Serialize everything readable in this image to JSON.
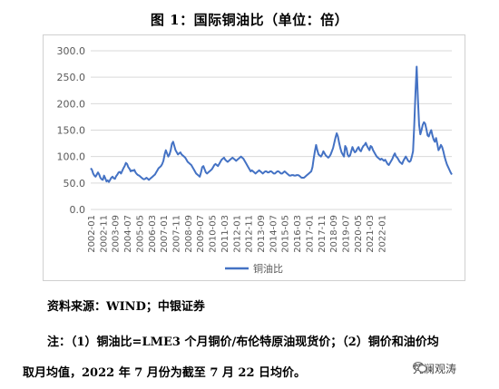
{
  "figure": {
    "title": "图 1：国际铜油比（单位：倍）",
    "source": "资料来源：WIND；中银证券",
    "note_line1": "注：（1）铜油比=LME3 个月铜价/布伦特原油现货价；（2）铜价和油价均",
    "note_line2": "取月均值，2022 年 7 月份为截至 7 月 22 日均价。",
    "watermark": "凭澜观涛"
  },
  "chart_data": {
    "type": "line",
    "title": "图 1：国际铜油比（单位：倍）",
    "xlabel": "",
    "ylabel": "",
    "ylim": [
      0,
      300
    ],
    "yticks": [
      "0.0",
      "50.0",
      "100.0",
      "150.0",
      "200.0",
      "250.0",
      "300.0"
    ],
    "xticks": [
      "2002-01",
      "2002-11",
      "2003-09",
      "2004-07",
      "2005-05",
      "2006-03",
      "2007-01",
      "2007-11",
      "2008-09",
      "2009-07",
      "2010-05",
      "2011-03",
      "2012-01",
      "2012-11",
      "2013-09",
      "2014-07",
      "2015-05",
      "2016-03",
      "2017-01",
      "2017-11",
      "2018-09",
      "2019-07",
      "2020-05",
      "2021-03",
      "2022-01"
    ],
    "grid": "horizontal",
    "legend_position": "bottom",
    "color": "#4472c4",
    "series": [
      {
        "name": "铜油比",
        "start": "2002-01",
        "frequency": "monthly",
        "values": [
          78,
          75,
          68,
          64,
          62,
          66,
          70,
          66,
          60,
          57,
          56,
          64,
          59,
          53,
          55,
          52,
          56,
          60,
          62,
          59,
          58,
          63,
          66,
          70,
          71,
          68,
          73,
          78,
          82,
          88,
          86,
          80,
          77,
          72,
          74,
          73,
          75,
          70,
          67,
          65,
          64,
          62,
          60,
          58,
          57,
          58,
          60,
          58,
          56,
          58,
          60,
          62,
          64,
          66,
          70,
          74,
          78,
          80,
          82,
          86,
          92,
          104,
          112,
          106,
          100,
          104,
          112,
          124,
          128,
          120,
          112,
          108,
          104,
          106,
          108,
          104,
          102,
          100,
          98,
          94,
          90,
          88,
          86,
          84,
          80,
          76,
          72,
          68,
          66,
          64,
          62,
          70,
          80,
          82,
          76,
          70,
          68,
          70,
          72,
          74,
          76,
          80,
          84,
          86,
          84,
          82,
          86,
          90,
          94,
          96,
          98,
          94,
          92,
          90,
          92,
          94,
          96,
          98,
          96,
          94,
          92,
          94,
          96,
          98,
          100,
          98,
          96,
          92,
          88,
          84,
          80,
          76,
          72,
          74,
          72,
          70,
          68,
          70,
          72,
          74,
          72,
          70,
          68,
          70,
          72,
          72,
          70,
          70,
          72,
          72,
          70,
          68,
          68,
          70,
          72,
          72,
          70,
          68,
          68,
          70,
          72,
          70,
          68,
          66,
          64,
          64,
          65,
          65,
          64,
          64,
          65,
          65,
          64,
          62,
          60,
          60,
          60,
          62,
          64,
          66,
          68,
          70,
          72,
          80,
          96,
          110,
          122,
          112,
          104,
          102,
          100,
          104,
          110,
          106,
          102,
          100,
          98,
          100,
          104,
          110,
          116,
          126,
          136,
          144,
          138,
          126,
          116,
          108,
          104,
          100,
          120,
          116,
          104,
          100,
          102,
          110,
          118,
          112,
          108,
          110,
          115,
          118,
          112,
          110,
          116,
          120,
          122,
          126,
          120,
          116,
          112,
          120,
          118,
          112,
          108,
          104,
          100,
          98,
          96,
          94,
          96,
          94,
          92,
          94,
          90,
          86,
          84,
          88,
          92,
          96,
          102,
          106,
          100,
          98,
          94,
          90,
          88,
          86,
          92,
          96,
          100,
          96,
          92,
          90,
          92,
          100,
          110,
          160,
          220,
          270,
          210,
          160,
          142,
          150,
          160,
          165,
          162,
          152,
          140,
          138,
          145,
          150,
          140,
          132,
          128,
          135,
          124,
          112,
          116,
          122,
          118,
          110,
          100,
          92,
          85,
          80,
          75,
          70,
          66
        ]
      }
    ]
  }
}
